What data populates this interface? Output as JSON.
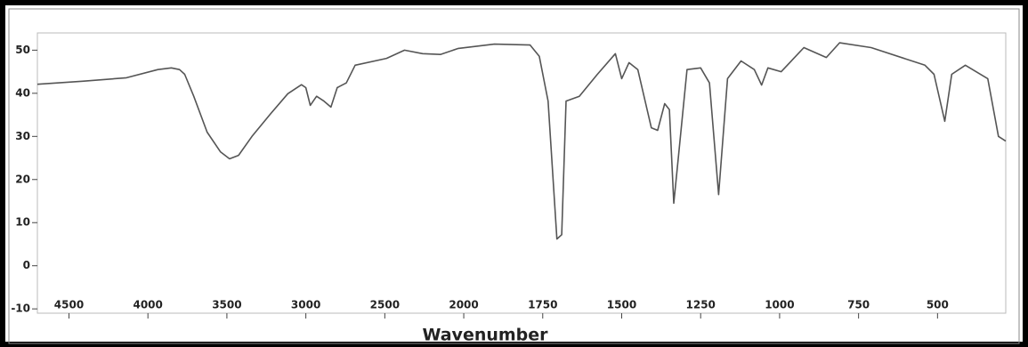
{
  "chart_data": {
    "type": "line",
    "x_label": "Wavenumber",
    "xlim": [
      4700,
      284
    ],
    "x_scale_break": {
      "at": 2000,
      "factor": 2
    },
    "xticks": [
      4500,
      4000,
      3500,
      3000,
      2500,
      2000,
      1750,
      1500,
      1250,
      1000,
      750,
      500
    ],
    "ylim": [
      -11,
      54
    ],
    "yticks": [
      -10,
      0,
      10,
      20,
      30,
      40,
      50
    ],
    "series": [
      {
        "color": "#555555",
        "x": [
          4700,
          4415,
          4136,
          3937,
          3852,
          3800,
          3767,
          3710,
          3625,
          3540,
          3483,
          3426,
          3341,
          3227,
          3114,
          3028,
          3000,
          2972,
          2932,
          2886,
          2841,
          2801,
          2744,
          2688,
          2489,
          2375,
          2261,
          2148,
          2034,
          1903,
          1790,
          1761,
          1733,
          1705,
          1690,
          1676,
          1634,
          1577,
          1520,
          1500,
          1477,
          1449,
          1406,
          1386,
          1364,
          1349,
          1335,
          1321,
          1293,
          1250,
          1222,
          1193,
          1165,
          1122,
          1080,
          1057,
          1037,
          995,
          923,
          852,
          810,
          710,
          540,
          511,
          477,
          455,
          412,
          341,
          307,
          284
        ],
        "values": [
          42.1,
          42.8,
          43.6,
          45.5,
          45.9,
          45.5,
          44.4,
          39.3,
          31,
          26.4,
          24.8,
          25.6,
          30,
          35.1,
          39.9,
          42,
          41.3,
          37.2,
          39.3,
          38.2,
          36.8,
          41.3,
          42.4,
          46.5,
          48.1,
          50,
          49.2,
          49,
          50.4,
          51.4,
          51.2,
          48.6,
          38.2,
          6.2,
          7.2,
          38.2,
          39.3,
          44.4,
          49.2,
          43.4,
          47.1,
          45.5,
          32,
          31.4,
          37.6,
          36.2,
          14.5,
          24.8,
          45.5,
          45.9,
          42.4,
          16.5,
          43.4,
          47.5,
          45.5,
          41.9,
          45.9,
          45,
          50.6,
          48.3,
          51.7,
          50.6,
          46.5,
          44.4,
          33.5,
          44.4,
          46.5,
          43.4,
          30,
          28.9
        ]
      }
    ]
  }
}
